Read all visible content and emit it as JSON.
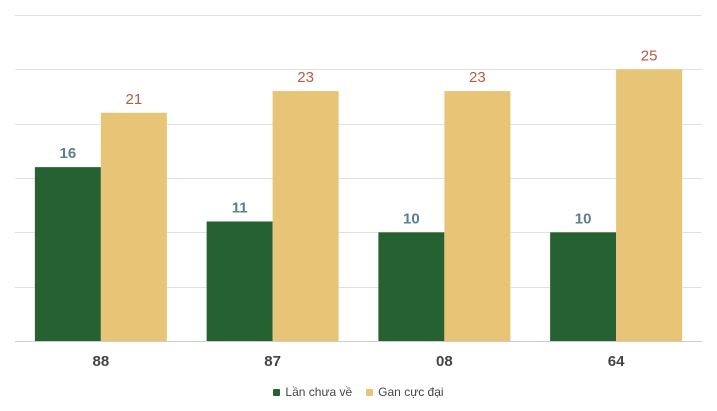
{
  "chart_data": {
    "type": "bar",
    "title": "",
    "xlabel": "",
    "ylabel": "",
    "categories": [
      "88",
      "87",
      "08",
      "64"
    ],
    "series": [
      {
        "name": "Lần chưa về",
        "values": [
          16,
          11,
          10,
          10
        ],
        "color": "#256131",
        "label_color": "#5b7f8c"
      },
      {
        "name": "Gan cực đại",
        "values": [
          21,
          23,
          23,
          25
        ],
        "color": "#e8c477",
        "label_color": "#b45c44"
      }
    ],
    "ylim": [
      0,
      30
    ],
    "grid": true,
    "y_tick_labels_shown": false,
    "legend_position": "bottom"
  }
}
